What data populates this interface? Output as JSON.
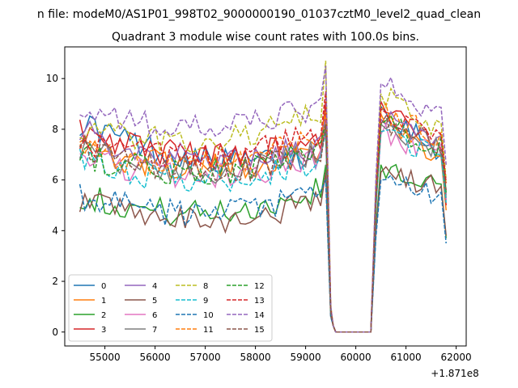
{
  "figure": {
    "suptitle": "n file: modeM0/AS1P01_998T02_9000000190_01037cztM0_level2_quad_clean",
    "title": "Quadrant 3 module wise count rates with 100.0s bins.",
    "offset_label": "+1.871e8"
  },
  "chart_data": {
    "type": "line",
    "title": "Quadrant 3 module wise count rates with 100.0s bins.",
    "xlabel": "",
    "ylabel": "",
    "x_offset": 187100000,
    "xlim": [
      54200,
      62200
    ],
    "ylim": [
      -0.55,
      11.25
    ],
    "xticks": [
      55000,
      56000,
      57000,
      58000,
      59000,
      60000,
      61000,
      62000
    ],
    "yticks": [
      0,
      2,
      4,
      6,
      8,
      10
    ],
    "grid": false,
    "legend": {
      "placement": "lower-left",
      "columns": 4
    },
    "series": [
      {
        "name": "0",
        "color": "#1f77b4",
        "dash": "solid",
        "start": 8.3,
        "end": 7.0,
        "post_peak": 8.9,
        "final": 5.2,
        "gap_level": 8.9
      },
      {
        "name": "1",
        "color": "#ff7f0e",
        "dash": "solid",
        "start": 7.4,
        "end": 7.2,
        "post_peak": 8.6,
        "final": 4.8,
        "gap_level": 8.6
      },
      {
        "name": "2",
        "color": "#2ca02c",
        "dash": "solid",
        "start": 5.4,
        "end": 5.6,
        "post_peak": 6.6,
        "final": 3.7,
        "gap_level": 6.6
      },
      {
        "name": "3",
        "color": "#d62728",
        "dash": "solid",
        "start": 8.0,
        "end": 7.6,
        "post_peak": 9.1,
        "final": 5.0,
        "gap_level": 9.1
      },
      {
        "name": "4",
        "color": "#9467bd",
        "dash": "solid",
        "start": 7.9,
        "end": 7.4,
        "post_peak": 8.4,
        "final": 5.4,
        "gap_level": 8.4
      },
      {
        "name": "5",
        "color": "#8c564b",
        "dash": "solid",
        "start": 5.1,
        "end": 5.2,
        "post_peak": 6.3,
        "final": 3.8,
        "gap_level": 6.3
      },
      {
        "name": "6",
        "color": "#e377c2",
        "dash": "solid",
        "start": 7.0,
        "end": 6.9,
        "post_peak": 7.8,
        "final": 5.2,
        "gap_level": 7.8
      },
      {
        "name": "7",
        "color": "#7f7f7f",
        "dash": "solid",
        "start": 7.2,
        "end": 7.1,
        "post_peak": 8.2,
        "final": 5.3,
        "gap_level": 8.2
      },
      {
        "name": "8",
        "color": "#bcbd22",
        "dash": "dashed",
        "start": 8.1,
        "end": 8.6,
        "post_peak": 9.4,
        "final": 6.0,
        "gap_level": 10.7
      },
      {
        "name": "9",
        "color": "#17becf",
        "dash": "dashed",
        "start": 6.8,
        "end": 6.8,
        "post_peak": 7.9,
        "final": 5.1,
        "gap_level": 7.9
      },
      {
        "name": "10",
        "color": "#1f77b4",
        "dash": "dashed",
        "start": 5.4,
        "end": 5.5,
        "post_peak": 6.0,
        "final": 3.5,
        "gap_level": 6.0
      },
      {
        "name": "11",
        "color": "#ff7f0e",
        "dash": "dashed",
        "start": 7.1,
        "end": 7.8,
        "post_peak": 8.7,
        "final": 5.8,
        "gap_level": 8.7
      },
      {
        "name": "12",
        "color": "#2ca02c",
        "dash": "dashed",
        "start": 7.0,
        "end": 7.2,
        "post_peak": 8.2,
        "final": 5.5,
        "gap_level": 8.2
      },
      {
        "name": "13",
        "color": "#d62728",
        "dash": "dashed",
        "start": 7.5,
        "end": 7.9,
        "post_peak": 8.8,
        "final": 5.9,
        "gap_level": 9.5
      },
      {
        "name": "14",
        "color": "#9467bd",
        "dash": "dashed",
        "start": 8.8,
        "end": 8.9,
        "post_peak": 9.8,
        "final": 6.6,
        "gap_level": 10.5
      },
      {
        "name": "15",
        "color": "#8c564b",
        "dash": "dashed",
        "start": 7.3,
        "end": 7.1,
        "post_peak": 8.2,
        "final": 5.6,
        "gap_level": 8.2
      }
    ]
  }
}
